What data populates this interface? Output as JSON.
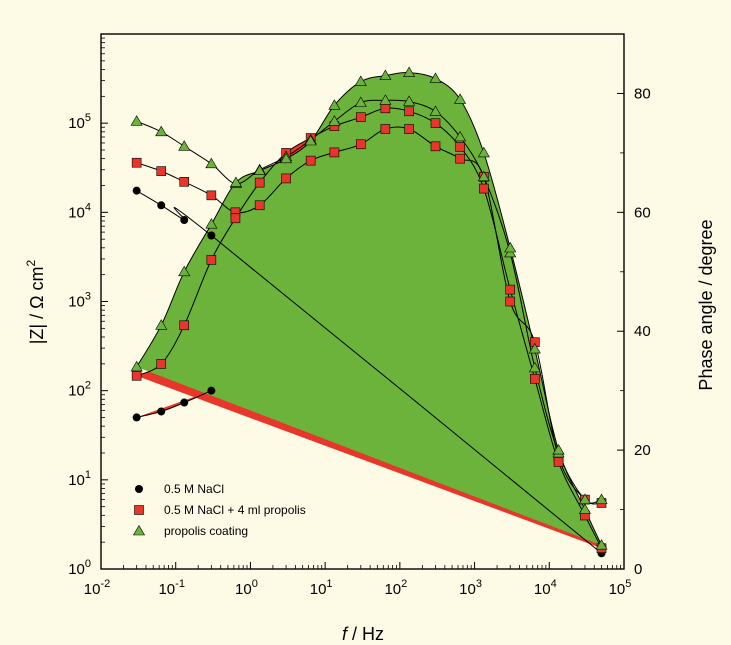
{
  "chart_data": {
    "type": "scatter",
    "title": "",
    "xlabel_italic": "f",
    "xlabel_rest": " / Hz",
    "ylabel_left": "|Z| / Ω cm²",
    "ylabel_left_parts": {
      "pre": "|Z| / Ω cm",
      "sup": "2"
    },
    "ylabel_right": "Phase angle / degree",
    "x_scale": "log",
    "xlim": [
      0.01,
      100000
    ],
    "y_left_scale": "log",
    "y_left_lim": [
      1,
      1000000
    ],
    "y_right_lim": [
      0,
      90
    ],
    "grid": false,
    "legend_position": "bottom-left",
    "x_ticks": [
      {
        "value": 0.01,
        "base": "10",
        "exp": "-2"
      },
      {
        "value": 0.1,
        "base": "10",
        "exp": "-1"
      },
      {
        "value": 1,
        "base": "10",
        "exp": "0"
      },
      {
        "value": 10,
        "base": "10",
        "exp": "1"
      },
      {
        "value": 100,
        "base": "10",
        "exp": "2"
      },
      {
        "value": 1000,
        "base": "10",
        "exp": "3"
      },
      {
        "value": 10000,
        "base": "10",
        "exp": "4"
      },
      {
        "value": 100000,
        "base": "10",
        "exp": "5"
      }
    ],
    "y_left_ticks": [
      {
        "value": 1,
        "base": "10",
        "exp": "0"
      },
      {
        "value": 10,
        "base": "10",
        "exp": "1"
      },
      {
        "value": 100,
        "base": "10",
        "exp": "2"
      },
      {
        "value": 1000,
        "base": "10",
        "exp": "3"
      },
      {
        "value": 10000,
        "base": "10",
        "exp": "4"
      },
      {
        "value": 100000,
        "base": "10",
        "exp": "5"
      }
    ],
    "y_right_ticks": [
      0,
      20,
      40,
      60,
      80
    ],
    "series": [
      {
        "name": "0.5 M NaCl",
        "marker": "circle",
        "color": "#000000",
        "fill_color": "#e8372a",
        "x": [
          0.03,
          0.064,
          0.13,
          0.3,
          50000
        ],
        "modulus": [
          17500,
          12000,
          8200,
          5500,
          1.5
        ],
        "phase": [
          25.5,
          26.5,
          28,
          30,
          null
        ]
      },
      {
        "name": "0.5 M NaCl + 4 ml propolis",
        "marker": "square",
        "color": "#e8372a",
        "fill_color": "#e8372a",
        "x": [
          0.03,
          0.064,
          0.13,
          0.3,
          0.63,
          1.33,
          3.0,
          6.4,
          13.3,
          30,
          64,
          133,
          300,
          640,
          1330,
          3000,
          6400,
          13300,
          30000,
          50000
        ],
        "modulus": [
          36000,
          29000,
          22000,
          15500,
          10000,
          12000,
          24000,
          38000,
          47000,
          58000,
          86000,
          86000,
          55000,
          40000,
          25000,
          1000,
          350,
          18,
          6,
          5.5
        ],
        "phase": [
          32.5,
          34.5,
          41,
          52,
          59,
          65,
          70,
          72.5,
          74.5,
          76,
          77.5,
          77,
          75,
          71,
          64,
          47,
          32,
          18,
          9,
          3.5
        ]
      },
      {
        "name": "propolis coating",
        "marker": "triangle",
        "color": "#6bb33b",
        "fill_color": "#6bb33b",
        "x": [
          0.03,
          0.064,
          0.13,
          0.3,
          0.64,
          1.33,
          3.0,
          6.4,
          13.3,
          30,
          64,
          133,
          300,
          640,
          1330,
          3000,
          6400,
          13300,
          30000,
          50000
        ],
        "modulus": [
          105000,
          80000,
          55000,
          35000,
          21000,
          30000,
          42000,
          65000,
          105000,
          170000,
          180000,
          175000,
          135000,
          70000,
          25000,
          3500,
          180,
          20,
          6,
          6
        ],
        "phase": [
          34,
          41,
          50,
          58,
          65,
          67,
          69,
          72,
          78,
          82,
          83,
          83.5,
          82.5,
          79,
          70,
          54,
          37,
          20,
          10,
          4
        ]
      }
    ]
  }
}
